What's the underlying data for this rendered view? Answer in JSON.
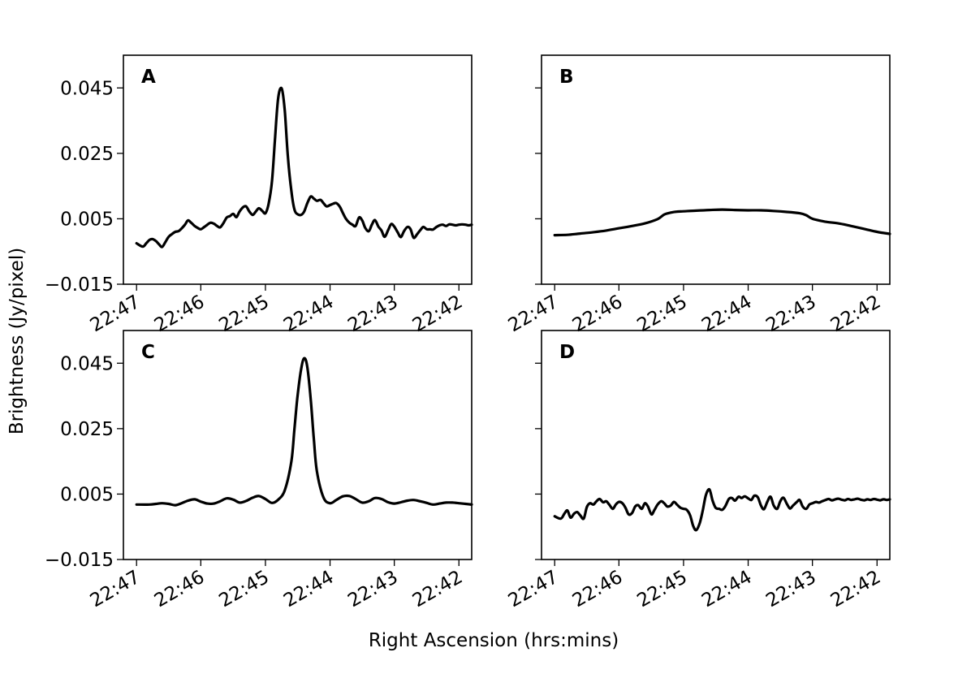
{
  "figure": {
    "xlabel": "Right Ascension (hrs:mins)",
    "ylabel": "Brightness (Jy/pixel)",
    "line_color": "#000000"
  },
  "chart_data": [
    {
      "type": "line",
      "panel": "A",
      "xlim": [
        22.7867,
        22.6967
      ],
      "ylim": [
        -0.015,
        0.055
      ],
      "x_ticks": [
        22.7833,
        22.7667,
        22.75,
        22.7333,
        22.7167,
        22.7
      ],
      "x_tick_labels": [
        "22:47",
        "22:46",
        "22:45",
        "22:44",
        "22:43",
        "22:42"
      ],
      "y_ticks": [
        -0.015,
        0.005,
        0.025,
        0.045
      ],
      "y_tick_labels": [
        "−0.015",
        "0.005",
        "0.025",
        "0.045"
      ],
      "x": [
        22.7833,
        22.7817,
        22.7808,
        22.78,
        22.7792,
        22.7783,
        22.7775,
        22.7767,
        22.7758,
        22.775,
        22.7742,
        22.7733,
        22.7725,
        22.7717,
        22.7708,
        22.77,
        22.7692,
        22.7683,
        22.7675,
        22.7667,
        22.7658,
        22.765,
        22.7642,
        22.7633,
        22.7625,
        22.7617,
        22.7608,
        22.76,
        22.7592,
        22.7583,
        22.7575,
        22.7567,
        22.7558,
        22.755,
        22.7542,
        22.7533,
        22.7525,
        22.7517,
        22.7508,
        22.75,
        22.7492,
        22.7483,
        22.7475,
        22.7467,
        22.7458,
        22.745,
        22.7442,
        22.7433,
        22.7425,
        22.7417,
        22.7408,
        22.74,
        22.7392,
        22.7383,
        22.7375,
        22.7367,
        22.7358,
        22.735,
        22.7342,
        22.7333,
        22.7325,
        22.7317,
        22.7308,
        22.73,
        22.7292,
        22.7283,
        22.7275,
        22.7267,
        22.7258,
        22.725,
        22.7242,
        22.7233,
        22.7225,
        22.7217,
        22.7208,
        22.72,
        22.7192,
        22.7183,
        22.7175,
        22.7167,
        22.7158,
        22.715,
        22.7142,
        22.7133,
        22.7125,
        22.7117,
        22.7108,
        22.71,
        22.7092,
        22.7083,
        22.7075,
        22.7067,
        22.7058,
        22.705,
        22.7042,
        22.7033,
        22.7025,
        22.7017,
        22.7008,
        22.7,
        22.6992,
        22.6983,
        22.6975,
        22.6967
      ],
      "y": [
        -0.0025,
        -0.0035,
        -0.0025,
        -0.0015,
        -0.0012,
        -0.0018,
        -0.0028,
        -0.0036,
        -0.002,
        -0.0005,
        0.0003,
        0.001,
        0.0012,
        0.002,
        0.0032,
        0.0045,
        0.0038,
        0.0028,
        0.0022,
        0.0018,
        0.0025,
        0.0032,
        0.0038,
        0.0035,
        0.0028,
        0.0024,
        0.0038,
        0.0054,
        0.0058,
        0.0065,
        0.0055,
        0.0072,
        0.0085,
        0.0088,
        0.0073,
        0.0062,
        0.0072,
        0.0082,
        0.0074,
        0.0067,
        0.0095,
        0.0165,
        0.03,
        0.042,
        0.0448,
        0.038,
        0.024,
        0.0135,
        0.0078,
        0.0064,
        0.0062,
        0.0072,
        0.0097,
        0.0118,
        0.0112,
        0.0105,
        0.0108,
        0.0098,
        0.0088,
        0.0092,
        0.0096,
        0.0098,
        0.0087,
        0.0068,
        0.005,
        0.0038,
        0.0032,
        0.0028,
        0.0054,
        0.0045,
        0.0022,
        0.0012,
        0.0032,
        0.0046,
        0.0026,
        0.0014,
        -0.0005,
        0.0015,
        0.0034,
        0.0026,
        0.0008,
        -0.0006,
        0.0012,
        0.0025,
        0.0018,
        -0.0008,
        0.0003,
        0.0015,
        0.0025,
        0.0018,
        0.0018,
        0.0017,
        0.0025,
        0.003,
        0.0032,
        0.0028,
        0.0033,
        0.0032,
        0.003,
        0.0032,
        0.0033,
        0.0032,
        0.003,
        0.0032
      ]
    },
    {
      "type": "line",
      "panel": "B",
      "xlim": [
        22.7867,
        22.6967
      ],
      "ylim": [
        -0.015,
        0.055
      ],
      "x_ticks": [
        22.7833,
        22.7667,
        22.75,
        22.7333,
        22.7167,
        22.7
      ],
      "x_tick_labels": [
        "22:47",
        "22:46",
        "22:45",
        "22:44",
        "22:43",
        "22:42"
      ],
      "y_ticks": [
        -0.015,
        0.005,
        0.025,
        0.045
      ],
      "y_tick_labels": [],
      "x": [
        22.7833,
        22.78,
        22.7767,
        22.7733,
        22.77,
        22.7667,
        22.7633,
        22.76,
        22.7567,
        22.755,
        22.7533,
        22.7517,
        22.75,
        22.7467,
        22.7433,
        22.74,
        22.7367,
        22.7333,
        22.73,
        22.7267,
        22.7233,
        22.72,
        22.7183,
        22.7167,
        22.7133,
        22.71,
        22.7067,
        22.7033,
        22.7,
        22.6967
      ],
      "y": [
        0.0,
        0.0001,
        0.0005,
        0.0009,
        0.0014,
        0.0021,
        0.0028,
        0.0036,
        0.0049,
        0.0063,
        0.0069,
        0.0072,
        0.0073,
        0.0075,
        0.0077,
        0.0078,
        0.0077,
        0.0076,
        0.0076,
        0.0074,
        0.0071,
        0.0067,
        0.0061,
        0.005,
        0.0041,
        0.0036,
        0.0028,
        0.0019,
        0.001,
        0.0004
      ]
    },
    {
      "type": "line",
      "panel": "C",
      "xlim": [
        22.7867,
        22.6967
      ],
      "ylim": [
        -0.015,
        0.055
      ],
      "x_ticks": [
        22.7833,
        22.7667,
        22.75,
        22.7333,
        22.7167,
        22.7
      ],
      "x_tick_labels": [
        "22:47",
        "22:46",
        "22:45",
        "22:44",
        "22:43",
        "22:42"
      ],
      "y_ticks": [
        -0.015,
        0.005,
        0.025,
        0.045
      ],
      "y_tick_labels": [
        "−0.015",
        "0.005",
        "0.025",
        "0.045"
      ],
      "x": [
        22.7833,
        22.78,
        22.7783,
        22.7767,
        22.775,
        22.7733,
        22.7717,
        22.77,
        22.7683,
        22.7667,
        22.765,
        22.7633,
        22.7617,
        22.76,
        22.7583,
        22.7567,
        22.755,
        22.7533,
        22.7517,
        22.75,
        22.7483,
        22.7467,
        22.745,
        22.7433,
        22.7425,
        22.7417,
        22.7408,
        22.74,
        22.7392,
        22.7383,
        22.7375,
        22.7367,
        22.735,
        22.7333,
        22.7317,
        22.73,
        22.7283,
        22.7267,
        22.725,
        22.7233,
        22.7217,
        22.72,
        22.7183,
        22.7167,
        22.715,
        22.7133,
        22.7117,
        22.71,
        22.7083,
        22.7067,
        22.705,
        22.7033,
        22.7017,
        22.7,
        22.6983,
        22.6967
      ],
      "y": [
        0.0018,
        0.0018,
        0.002,
        0.0022,
        0.002,
        0.0016,
        0.0022,
        0.003,
        0.0034,
        0.0027,
        0.0021,
        0.0021,
        0.0028,
        0.0037,
        0.0033,
        0.0024,
        0.0029,
        0.0039,
        0.0044,
        0.0035,
        0.0023,
        0.0033,
        0.0062,
        0.015,
        0.025,
        0.035,
        0.043,
        0.0465,
        0.044,
        0.034,
        0.022,
        0.012,
        0.004,
        0.0022,
        0.0032,
        0.0043,
        0.0044,
        0.0035,
        0.0024,
        0.0028,
        0.0038,
        0.0035,
        0.0025,
        0.0021,
        0.0025,
        0.003,
        0.0032,
        0.0028,
        0.0023,
        0.0018,
        0.0021,
        0.0024,
        0.0024,
        0.0022,
        0.002,
        0.0018
      ]
    },
    {
      "type": "line",
      "panel": "D",
      "xlim": [
        22.7867,
        22.6967
      ],
      "ylim": [
        -0.015,
        0.055
      ],
      "x_ticks": [
        22.7833,
        22.7667,
        22.75,
        22.7333,
        22.7167,
        22.7
      ],
      "x_tick_labels": [
        "22:47",
        "22:46",
        "22:45",
        "22:44",
        "22:43",
        "22:42"
      ],
      "y_ticks": [
        -0.015,
        0.005,
        0.025,
        0.045
      ],
      "y_tick_labels": [],
      "x": [
        22.7833,
        22.7817,
        22.7808,
        22.78,
        22.7792,
        22.7783,
        22.7775,
        22.7767,
        22.7758,
        22.775,
        22.7742,
        22.7733,
        22.7725,
        22.7717,
        22.7708,
        22.77,
        22.7692,
        22.7683,
        22.7675,
        22.7667,
        22.7658,
        22.765,
        22.7642,
        22.7633,
        22.7625,
        22.7617,
        22.7608,
        22.76,
        22.7592,
        22.7583,
        22.7575,
        22.7567,
        22.7558,
        22.755,
        22.7542,
        22.7533,
        22.7525,
        22.7517,
        22.7508,
        22.75,
        22.7492,
        22.7483,
        22.7475,
        22.7467,
        22.7458,
        22.745,
        22.7442,
        22.7433,
        22.7425,
        22.7417,
        22.7408,
        22.74,
        22.7392,
        22.7383,
        22.7375,
        22.7367,
        22.7358,
        22.735,
        22.7342,
        22.7333,
        22.7325,
        22.7317,
        22.7308,
        22.73,
        22.7292,
        22.7283,
        22.7275,
        22.7267,
        22.7258,
        22.725,
        22.7242,
        22.7233,
        22.7225,
        22.7217,
        22.7208,
        22.72,
        22.7192,
        22.7183,
        22.7175,
        22.7167,
        22.7158,
        22.715,
        22.7142,
        22.7133,
        22.7125,
        22.7117,
        22.7108,
        22.71,
        22.7092,
        22.7083,
        22.7075,
        22.7067,
        22.7058,
        22.705,
        22.7042,
        22.7033,
        22.7025,
        22.7017,
        22.7008,
        22.7,
        22.6992,
        22.6983,
        22.6975,
        22.6967
      ],
      "y": [
        -0.0018,
        -0.0025,
        -0.001,
        0.0,
        -0.0022,
        -0.001,
        -0.0005,
        -0.0015,
        -0.0025,
        0.001,
        0.0022,
        0.0018,
        0.0028,
        0.0035,
        0.0025,
        0.0028,
        0.0018,
        0.0005,
        0.0018,
        0.0026,
        0.0022,
        0.0008,
        -0.0012,
        -0.0008,
        0.0012,
        0.0016,
        0.0005,
        0.0022,
        0.0012,
        -0.0012,
        0.0002,
        0.0018,
        0.0028,
        0.0022,
        0.0012,
        0.0015,
        0.0026,
        0.0018,
        0.0008,
        0.0005,
        0.0002,
        -0.0015,
        -0.0048,
        -0.006,
        -0.0038,
        0.0002,
        0.0048,
        0.0064,
        0.003,
        0.0008,
        0.0005,
        0.0002,
        0.0013,
        0.0035,
        0.0038,
        0.003,
        0.0042,
        0.0038,
        0.0043,
        0.0037,
        0.0032,
        0.0045,
        0.004,
        0.0015,
        0.0004,
        0.0028,
        0.0042,
        0.0015,
        0.0005,
        0.0028,
        0.0039,
        0.002,
        0.0006,
        0.0015,
        0.0025,
        0.0032,
        0.0012,
        0.0005,
        0.0018,
        0.0022,
        0.0026,
        0.0024,
        0.0028,
        0.0032,
        0.0035,
        0.0031,
        0.0034,
        0.0036,
        0.0033,
        0.0031,
        0.0035,
        0.0032,
        0.0034,
        0.0036,
        0.0033,
        0.0031,
        0.0034,
        0.0032,
        0.0035,
        0.0033,
        0.0031,
        0.0034,
        0.0032,
        0.0034
      ]
    }
  ]
}
